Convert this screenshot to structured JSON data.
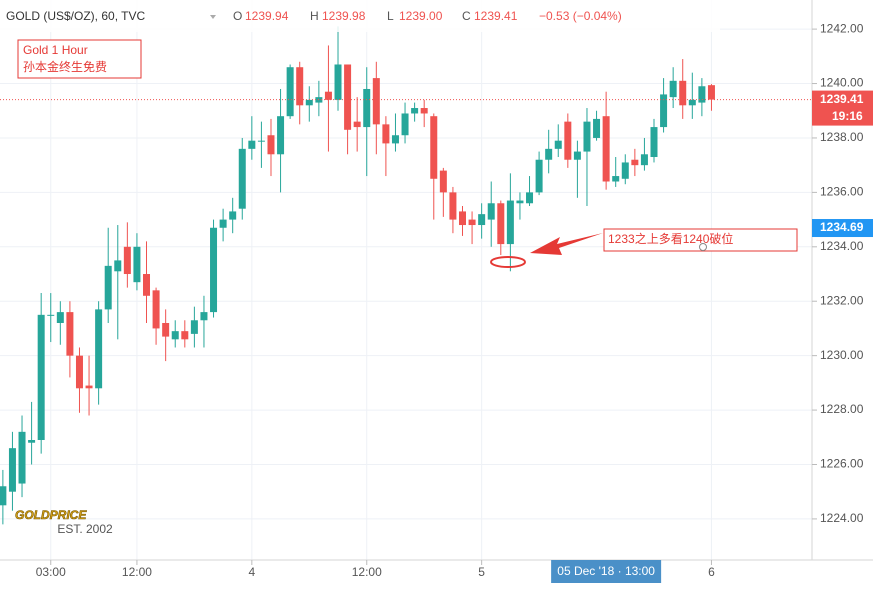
{
  "chart_data": {
    "type": "candlestick",
    "title": "GOLD (US$/OZ), 60, TVC",
    "ohlc_labels": [
      {
        "key": "O",
        "value": "1239.94"
      },
      {
        "key": "H",
        "value": "1239.98"
      },
      {
        "key": "L",
        "value": "1239.00"
      },
      {
        "key": "C",
        "value": "1239.41"
      }
    ],
    "change": "−0.53 (−0.04%)",
    "up_color": "#26a69a",
    "down_color": "#ef5350",
    "open": [
      1224.5,
      1225,
      1225.3,
      1226.8,
      1226.9,
      1231.5,
      1231.2,
      1231.6,
      1230,
      1228.9,
      1228.8,
      1231.7,
      1233.1,
      1234,
      1232.7,
      1233,
      1232.4,
      1231.2,
      1230.6,
      1230.9,
      1230.8,
      1231.3,
      1231.6,
      1234.7,
      1235,
      1235.4,
      1237.6,
      1237.9,
      1238.1,
      1237.4,
      1238.8,
      1240.6,
      1239.2,
      1239.3,
      1239.7,
      1239.4,
      1240.7,
      1238.6,
      1238.4,
      1240.2,
      1238.5,
      1237.8,
      1238.1,
      1238.9,
      1239.1,
      1238.8,
      1236.8,
      1236,
      1235.3,
      1235,
      1234.8,
      1235,
      1235.6,
      1234.1,
      1235.6,
      1235.6,
      1236,
      1237.2,
      1237.6,
      1238.6,
      1237.2,
      1237.5,
      1238,
      1238.8,
      1236.4,
      1236.5,
      1237.2,
      1237,
      1237.3,
      1238.4,
      1239.5,
      1240.1,
      1239.2,
      1239.3,
      1239.94
    ],
    "high": [
      1225.8,
      1227.2,
      1227.8,
      1228.3,
      1232.3,
      1232.3,
      1232,
      1232,
      1230.3,
      1230,
      1232,
      1234.7,
      1234.8,
      1234.9,
      1234.5,
      1234.2,
      1232.5,
      1231.7,
      1231.3,
      1231.3,
      1231.8,
      1232.2,
      1235,
      1235.4,
      1235.8,
      1238,
      1238.8,
      1238.6,
      1238.7,
      1239.8,
      1240.7,
      1240.8,
      1239.9,
      1240.1,
      1241.4,
      1242.1,
      1240.7,
      1239.5,
      1240.6,
      1240.8,
      1238.8,
      1238.9,
      1239.3,
      1239.3,
      1239.4,
      1238.9,
      1236.9,
      1236.2,
      1235.5,
      1235.3,
      1235.6,
      1236.4,
      1235.7,
      1236.7,
      1236,
      1236.6,
      1237.5,
      1238.3,
      1238.5,
      1238.9,
      1237.9,
      1239.1,
      1239,
      1239.7,
      1237.3,
      1237.4,
      1237.6,
      1238,
      1238.7,
      1240.2,
      1240.6,
      1240.9,
      1240.4,
      1240.2,
      1239.98
    ],
    "low": [
      1223.8,
      1224.3,
      1224.8,
      1226,
      1226.4,
      1230.5,
      1230.4,
      1229.2,
      1227.9,
      1227.8,
      1228.2,
      1231.2,
      1230.6,
      1232.5,
      1232.4,
      1231.2,
      1230.4,
      1229.8,
      1230.3,
      1230.3,
      1230.3,
      1230.3,
      1231.4,
      1234.2,
      1234.5,
      1235,
      1237.2,
      1236.9,
      1236.6,
      1236,
      1238.7,
      1238.5,
      1238.6,
      1238.8,
      1237.5,
      1239,
      1237.4,
      1237.5,
      1236.6,
      1237.4,
      1236.6,
      1237.5,
      1237.8,
      1238.6,
      1238.4,
      1235,
      1235.1,
      1234.5,
      1234.4,
      1234.1,
      1234.3,
      1234,
      1233.7,
      1233.1,
      1235,
      1235.5,
      1235.9,
      1236.7,
      1237.3,
      1236.9,
      1235.8,
      1235.5,
      1237.9,
      1236.1,
      1236.2,
      1236.3,
      1236.6,
      1236.8,
      1237.1,
      1238.2,
      1239.1,
      1238.7,
      1238.7,
      1238.8,
      1239.0
    ],
    "close": [
      1225.2,
      1226.6,
      1227.2,
      1226.9,
      1231.5,
      1231.5,
      1231.6,
      1230,
      1228.8,
      1228.8,
      1231.7,
      1233.3,
      1233.5,
      1233,
      1234,
      1232.2,
      1231,
      1230.7,
      1230.9,
      1230.6,
      1231.3,
      1231.6,
      1234.7,
      1235,
      1235.3,
      1237.6,
      1237.9,
      1237.9,
      1237.4,
      1238.8,
      1240.6,
      1239.2,
      1239.4,
      1239.5,
      1239.4,
      1240.7,
      1238.3,
      1238.4,
      1239.8,
      1238.5,
      1237.8,
      1238.1,
      1238.9,
      1239.1,
      1238.9,
      1236.5,
      1236,
      1235,
      1234.8,
      1234.8,
      1235.2,
      1235.6,
      1234.1,
      1235.7,
      1235.7,
      1236,
      1237.2,
      1237.6,
      1237.9,
      1237.2,
      1237.5,
      1238.6,
      1238.7,
      1236.4,
      1236.6,
      1237.1,
      1237,
      1237.4,
      1238.4,
      1239.6,
      1240.1,
      1239.2,
      1239.4,
      1239.9,
      1239.41
    ],
    "ylim": [
      1222.49,
      1243.07
    ],
    "yticks": [
      {
        "value": 1242,
        "label": "1242.00"
      },
      {
        "value": 1240,
        "label": "1240.00"
      },
      {
        "value": 1238,
        "label": "1238.00"
      },
      {
        "value": 1236,
        "label": "1236.00"
      },
      {
        "value": 1234,
        "label": "1234.00"
      },
      {
        "value": 1232,
        "label": "1232.00"
      },
      {
        "value": 1230,
        "label": "1230.00"
      },
      {
        "value": 1228,
        "label": "1228.00"
      },
      {
        "value": 1226,
        "label": "1226.00"
      },
      {
        "value": 1224,
        "label": "1224.00"
      }
    ],
    "xlim": [
      -0.3,
      84.5
    ],
    "xticks": [
      {
        "value": 5,
        "label": "03:00"
      },
      {
        "value": 14,
        "label": "12:00"
      },
      {
        "value": 26,
        "label": "4"
      },
      {
        "value": 38,
        "label": "12:00"
      },
      {
        "value": 50,
        "label": "5"
      },
      {
        "value": 74,
        "label": "6"
      }
    ],
    "crosshair_x": {
      "value": 63,
      "label": "05 Dec '18 · 13:00"
    },
    "last_price": {
      "value": 1239.41,
      "label": "1239.41"
    },
    "countdown": "19:16",
    "marker_price": {
      "value": 1234.69,
      "label": "1234.69"
    },
    "grid": true,
    "annotations": {
      "box_lines": [
        "Gold 1 Hour",
        "孙本金终生免费"
      ],
      "callout": "1233之上多看1240破位"
    },
    "logo": {
      "name": "GOLDPRICE",
      "est": "EST. 2002"
    }
  }
}
